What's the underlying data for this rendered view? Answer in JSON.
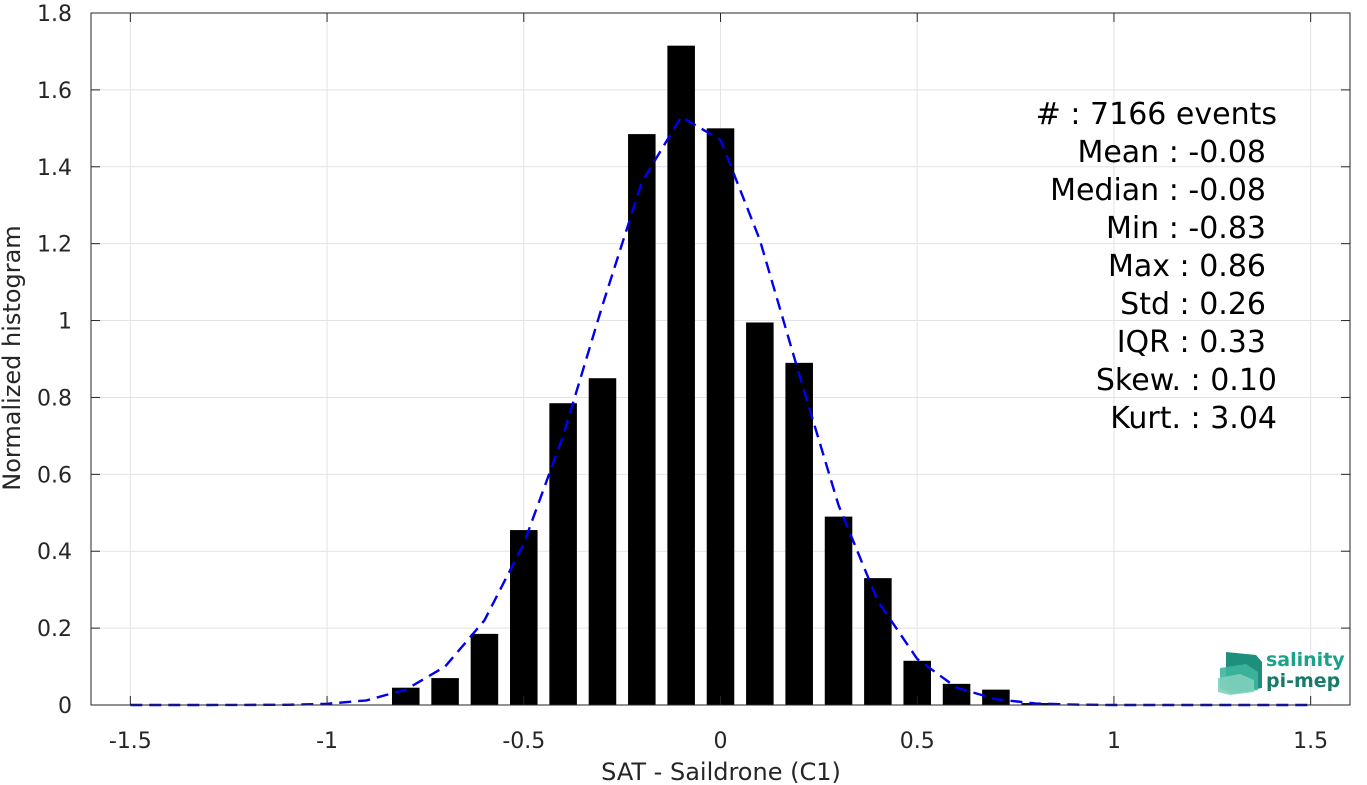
{
  "chart_data": {
    "type": "bar",
    "xlabel": "SAT - Saildrone (C1)",
    "ylabel": "Normalized histogram",
    "xlim": [
      -1.6,
      1.6
    ],
    "ylim": [
      0,
      1.8
    ],
    "xticks": [
      -1.5,
      -1,
      -0.5,
      0,
      0.5,
      1,
      1.5
    ],
    "xtick_labels": [
      "-1.5",
      "-1",
      "-0.5",
      "0",
      "0.5",
      "1",
      "1.5"
    ],
    "yticks": [
      0,
      0.2,
      0.4,
      0.6,
      0.8,
      1,
      1.2,
      1.4,
      1.6,
      1.8
    ],
    "ytick_labels": [
      "0",
      "0.2",
      "0.4",
      "0.6",
      "0.8",
      "1",
      "1.2",
      "1.4",
      "1.6",
      "1.8"
    ],
    "grid": true,
    "bar_color": "#000000",
    "bar_width": 0.07,
    "bars": [
      {
        "x": -0.8,
        "y": 0.045
      },
      {
        "x": -0.7,
        "y": 0.07
      },
      {
        "x": -0.6,
        "y": 0.185
      },
      {
        "x": -0.5,
        "y": 0.455
      },
      {
        "x": -0.4,
        "y": 0.785
      },
      {
        "x": -0.3,
        "y": 0.85
      },
      {
        "x": -0.2,
        "y": 1.485
      },
      {
        "x": -0.1,
        "y": 1.715
      },
      {
        "x": 0.0,
        "y": 1.5
      },
      {
        "x": 0.1,
        "y": 0.995
      },
      {
        "x": 0.2,
        "y": 0.89
      },
      {
        "x": 0.3,
        "y": 0.49
      },
      {
        "x": 0.4,
        "y": 0.33
      },
      {
        "x": 0.5,
        "y": 0.115
      },
      {
        "x": 0.6,
        "y": 0.055
      },
      {
        "x": 0.7,
        "y": 0.04
      },
      {
        "x": 0.8,
        "y": 0.005
      }
    ],
    "fit_curve": {
      "color": "#0000ee",
      "style": "dashed",
      "points": [
        [
          -1.5,
          0.0
        ],
        [
          -1.3,
          0.0
        ],
        [
          -1.1,
          0.0005
        ],
        [
          -1.0,
          0.003
        ],
        [
          -0.9,
          0.012
        ],
        [
          -0.8,
          0.04
        ],
        [
          -0.7,
          0.1
        ],
        [
          -0.6,
          0.22
        ],
        [
          -0.5,
          0.42
        ],
        [
          -0.4,
          0.7
        ],
        [
          -0.3,
          1.04
        ],
        [
          -0.2,
          1.36
        ],
        [
          -0.1,
          1.53
        ],
        [
          0.0,
          1.47
        ],
        [
          0.1,
          1.21
        ],
        [
          0.2,
          0.86
        ],
        [
          0.3,
          0.52
        ],
        [
          0.4,
          0.27
        ],
        [
          0.5,
          0.12
        ],
        [
          0.6,
          0.045
        ],
        [
          0.7,
          0.015
        ],
        [
          0.8,
          0.004
        ],
        [
          0.9,
          0.001
        ],
        [
          1.0,
          0.0
        ],
        [
          1.2,
          0.0
        ],
        [
          1.5,
          0.0
        ]
      ]
    }
  },
  "stats": {
    "lines": [
      "#  : 7166 events",
      "Mean : -0.08",
      "Median : -0.08",
      "Min : -0.83",
      "Max : 0.86",
      "Std : 0.26",
      "IQR : 0.33",
      "Skew. : 0.10",
      "Kurt. : 3.04"
    ]
  },
  "logo": {
    "line1": "salinity",
    "line2": "pi-mep",
    "color1": "#1aa38a",
    "color2": "#1a7a6a"
  }
}
